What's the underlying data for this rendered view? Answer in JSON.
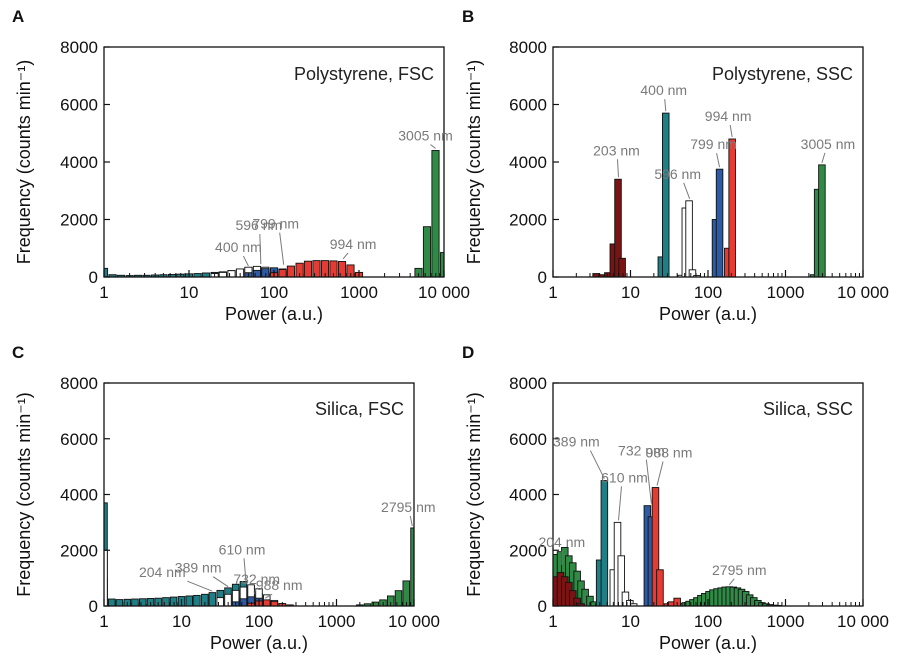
{
  "palette": {
    "203": "#7a1414",
    "204": "#7a1414",
    "400": "#1f7f86",
    "389": "#1f7f86",
    "596": "#ffffff",
    "610": "#ffffff",
    "799": "#2d5aa5",
    "732": "#2d5aa5",
    "994": "#e53b32",
    "988": "#e53b32",
    "3005": "#2f8a45",
    "2795": "#2f8a45"
  },
  "chart_data": [
    {
      "type": "bar",
      "panel": "A",
      "title": "Polystyrene, FSC",
      "xlabel": "Power (a.u.)",
      "ylabel": "Frequency (counts min⁻¹)",
      "xscale": "log",
      "xlim": [
        1,
        10000
      ],
      "ylim": [
        0,
        8000
      ],
      "xticks": [
        "1",
        "10",
        "100",
        "1000",
        "10 000"
      ],
      "yticks": [
        "0",
        "2000",
        "4000",
        "6000",
        "8000"
      ],
      "series": [
        {
          "name": "400 nm",
          "key": "400",
          "x": [
            1.0,
            1.26,
            1.58,
            2.0,
            2.51,
            3.16,
            3.98,
            5.0,
            6.3,
            7.9,
            10,
            12.6,
            15.8,
            20,
            25,
            31.6,
            39.8,
            50,
            63,
            79,
            100
          ],
          "values": [
            300,
            80,
            60,
            50,
            60,
            60,
            70,
            80,
            90,
            100,
            110,
            120,
            140,
            160,
            180,
            220,
            260,
            300,
            320,
            300,
            200
          ]
        },
        {
          "name": "596 nm",
          "key": "596",
          "x": [
            20,
            25,
            31.6,
            39.8,
            50,
            63,
            79,
            100,
            126
          ],
          "values": [
            120,
            160,
            220,
            280,
            340,
            370,
            340,
            260,
            140
          ]
        },
        {
          "name": "799 nm",
          "key": "799",
          "x": [
            50,
            63,
            79,
            100,
            126,
            158,
            200
          ],
          "values": [
            150,
            230,
            290,
            320,
            280,
            200,
            100
          ]
        },
        {
          "name": "994 nm",
          "key": "994",
          "x": [
            100,
            126,
            158,
            200,
            251,
            316,
            398,
            501,
            631,
            794,
            1000
          ],
          "values": [
            150,
            260,
            380,
            480,
            550,
            570,
            570,
            560,
            540,
            420,
            160
          ]
        },
        {
          "name": "3005 nm",
          "key": "3005",
          "x": [
            5012,
            6310,
            7943,
            10000
          ],
          "values": [
            300,
            1750,
            4400,
            850
          ]
        }
      ],
      "annotations": [
        {
          "text": "3005 nm",
          "x": 7943,
          "y": 4400
        },
        {
          "text": "400 nm",
          "x": 50,
          "y": 310
        },
        {
          "text": "596 nm",
          "x": 70,
          "y": 380
        },
        {
          "text": "799 nm",
          "x": 130,
          "y": 360
        },
        {
          "text": "994 nm",
          "x": 650,
          "y": 560
        }
      ]
    },
    {
      "type": "bar",
      "panel": "B",
      "title": "Polystyrene, SSC",
      "xlabel": "Power (a.u.)",
      "ylabel": "Frequency (counts min⁻¹)",
      "xscale": "log",
      "xlim": [
        1,
        10000
      ],
      "ylim": [
        0,
        8000
      ],
      "xticks": [
        "1",
        "10",
        "100",
        "1000",
        "10 000"
      ],
      "yticks": [
        "0",
        "2000",
        "4000",
        "6000",
        "8000"
      ],
      "series": [
        {
          "name": "203 nm",
          "key": "203",
          "x": [
            3.6,
            4.3,
            5.1,
            6.0,
            6.9,
            7.8
          ],
          "values": [
            120,
            80,
            150,
            1150,
            3400,
            650
          ]
        },
        {
          "name": "400 nm",
          "key": "400",
          "x": [
            25,
            28.5
          ],
          "values": [
            700,
            5700
          ]
        },
        {
          "name": "596 nm",
          "key": "596",
          "x": [
            45,
            51,
            57,
            63,
            72
          ],
          "values": [
            60,
            2400,
            2650,
            250,
            50
          ]
        },
        {
          "name": "799 nm",
          "key": "799",
          "x": [
            125,
            141
          ],
          "values": [
            2000,
            3750
          ]
        },
        {
          "name": "994 nm",
          "key": "994",
          "x": [
            180,
            205
          ],
          "values": [
            1000,
            4800
          ]
        },
        {
          "name": "3005 nm",
          "key": "3005",
          "x": [
            2300,
            2600,
            2950
          ],
          "values": [
            80,
            3050,
            3900
          ]
        }
      ],
      "annotations": [
        {
          "text": "203 nm",
          "x": 7.0,
          "y": 3400
        },
        {
          "text": "400 nm",
          "x": 28.5,
          "y": 5700
        },
        {
          "text": "596 nm",
          "x": 58,
          "y": 2650
        },
        {
          "text": "799 nm",
          "x": 141,
          "y": 3750
        },
        {
          "text": "994 nm",
          "x": 205,
          "y": 4800
        },
        {
          "text": "3005 nm",
          "x": 2950,
          "y": 3900
        }
      ]
    },
    {
      "type": "bar",
      "panel": "C",
      "title": "Silica, FSC",
      "xlabel": "Power (a.u.)",
      "ylabel": "Frequency (counts min⁻¹)",
      "xscale": "log",
      "xlim": [
        1,
        10000
      ],
      "ylim": [
        0,
        8000
      ],
      "xticks": [
        "1",
        "10",
        "100",
        "1000",
        "10 000"
      ],
      "yticks": [
        "0",
        "2000",
        "4000",
        "6000",
        "8000"
      ],
      "series": [
        {
          "name": "204 nm",
          "key": "204",
          "x": [
            1.0,
            1.26,
            1.58,
            2.0,
            2.51,
            3.16,
            3.98,
            5.0
          ],
          "values": [
            1000,
            200,
            150,
            120,
            100,
            80,
            60,
            40
          ]
        },
        {
          "name": "389 nm",
          "key": "389",
          "x": [
            1.0,
            1.26,
            1.58,
            2.0,
            2.51,
            3.16,
            3.98,
            5.0,
            6.3,
            7.9,
            10,
            12.6,
            15.8,
            20,
            25,
            31.6,
            39.8,
            50,
            63,
            79,
            100,
            126
          ],
          "values": [
            3700,
            250,
            230,
            240,
            250,
            260,
            270,
            280,
            300,
            320,
            340,
            360,
            380,
            420,
            480,
            560,
            650,
            780,
            880,
            720,
            450,
            200
          ]
        },
        {
          "name": "610 nm",
          "key": "610",
          "x": [
            1.0,
            31.6,
            39.8,
            50,
            63,
            79,
            100,
            126,
            158,
            200
          ],
          "values": [
            2000,
            300,
            420,
            560,
            680,
            760,
            620,
            400,
            200,
            80
          ]
        },
        {
          "name": "732 nm",
          "key": "732",
          "x": [
            50,
            63,
            79,
            100,
            126,
            158
          ],
          "values": [
            150,
            260,
            330,
            280,
            180,
            80
          ]
        },
        {
          "name": "988 nm",
          "key": "988",
          "x": [
            79,
            100,
            126,
            158,
            200,
            251
          ],
          "values": [
            100,
            180,
            220,
            160,
            90,
            40
          ]
        },
        {
          "name": "2795 nm",
          "key": "2795",
          "x": [
            1995,
            2512,
            3162,
            3981,
            5012,
            6310,
            7943,
            10000
          ],
          "values": [
            40,
            80,
            140,
            220,
            360,
            550,
            900,
            2800
          ]
        }
      ],
      "annotations": [
        {
          "text": "2795 nm",
          "x": 9500,
          "y": 2800
        },
        {
          "text": "389 nm",
          "x": 40,
          "y": 620
        },
        {
          "text": "204 nm",
          "x": 25,
          "y": 460
        },
        {
          "text": "610 nm",
          "x": 68,
          "y": 780
        },
        {
          "text": "732 nm",
          "x": 88,
          "y": 350
        },
        {
          "text": "988 nm",
          "x": 120,
          "y": 210
        }
      ]
    },
    {
      "type": "bar",
      "panel": "D",
      "title": "Silica, SSC",
      "xlabel": "Power (a.u.)",
      "ylabel": "Frequency (counts min⁻¹)",
      "xscale": "log",
      "xlim": [
        1,
        10000
      ],
      "ylim": [
        0,
        8000
      ],
      "xticks": [
        "1",
        "10",
        "100",
        "1000",
        "10 000"
      ],
      "yticks": [
        "0",
        "2000",
        "4000",
        "6000",
        "8000"
      ],
      "series": [
        {
          "name": "2795 nm",
          "key": "2795",
          "x": [
            1.1,
            1.25,
            1.42,
            1.6,
            1.8,
            2.05,
            2.3,
            2.6,
            3.0,
            3.4,
            3.9,
            4.4,
            40,
            45,
            51,
            57,
            64,
            72,
            81,
            91,
            103,
            116,
            131,
            148,
            167,
            188,
            212,
            240,
            271,
            306,
            345,
            390,
            440,
            497,
            561,
            634,
            716,
            808
          ],
          "values": [
            1850,
            1950,
            2100,
            1800,
            1550,
            1250,
            900,
            600,
            350,
            150,
            80,
            40,
            60,
            90,
            120,
            170,
            230,
            300,
            380,
            450,
            520,
            580,
            620,
            650,
            680,
            690,
            680,
            650,
            600,
            520,
            400,
            300,
            200,
            120,
            80,
            50,
            30,
            20
          ]
        },
        {
          "name": "204 nm",
          "key": "204",
          "x": [
            1.1,
            1.25,
            1.42,
            1.6,
            1.8,
            2.05,
            2.3
          ],
          "values": [
            1050,
            1200,
            1050,
            850,
            550,
            280,
            80
          ]
        },
        {
          "name": "389 nm",
          "key": "389",
          "x": [
            4.0,
            4.6
          ],
          "values": [
            1650,
            4500
          ]
        },
        {
          "name": "610 nm",
          "key": "610",
          "x": [
            6.0,
            6.8,
            7.6,
            8.6,
            9.8,
            11
          ],
          "values": [
            1300,
            3000,
            1800,
            500,
            200,
            80
          ]
        },
        {
          "name": "732 nm",
          "key": "732",
          "x": [
            16.5,
            18.6
          ],
          "values": [
            3600,
            3200
          ]
        },
        {
          "name": "988 nm",
          "key": "988",
          "x": [
            21,
            24,
            30,
            34,
            40
          ],
          "values": [
            4250,
            1300,
            80,
            150,
            280
          ]
        }
      ],
      "annotations": [
        {
          "text": "389 nm",
          "x": 4.6,
          "y": 4500
        },
        {
          "text": "610 nm",
          "x": 7.0,
          "y": 3000
        },
        {
          "text": "732 nm",
          "x": 18.6,
          "y": 3600
        },
        {
          "text": "988 nm",
          "x": 22,
          "y": 4250
        },
        {
          "text": "204 nm",
          "x": 1.3,
          "y": 1400
        },
        {
          "text": "2795 nm",
          "x": 188,
          "y": 690
        }
      ]
    }
  ]
}
